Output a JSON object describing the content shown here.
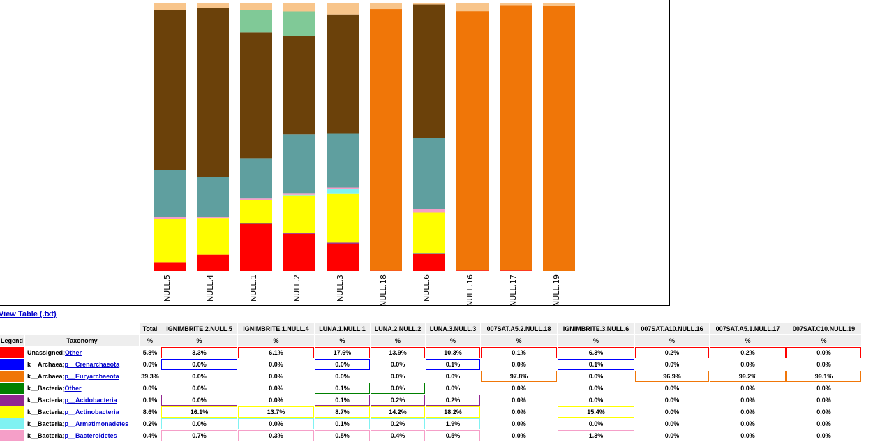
{
  "chart_data": {
    "type": "stacked-bar",
    "categories": [
      "NULL.5",
      "NULL.4",
      "NULL.1",
      "NULL.2",
      "NULL.3",
      "NULL.18",
      "NULL.6",
      "NULL.16",
      "NULL.17",
      "NULL.19"
    ],
    "ylim": [
      0,
      100
    ],
    "series": [
      {
        "name": "Unassigned;Other",
        "color": "#ff0000",
        "values": [
          3.3,
          6.1,
          17.6,
          13.9,
          10.3,
          0.1,
          6.3,
          0.2,
          0.2,
          0.0
        ]
      },
      {
        "name": "k__Archaea;p__Crenarchaeota",
        "color": "#0000ff",
        "values": [
          0.0,
          0.0,
          0.0,
          0.0,
          0.1,
          0.0,
          0.1,
          0.0,
          0.0,
          0.0
        ]
      },
      {
        "name": "k__Archaea;p__Euryarchaeota",
        "color": "#f07608",
        "values": [
          0.0,
          0.0,
          0.0,
          0.0,
          0.0,
          97.8,
          0.0,
          96.9,
          99.2,
          99.1
        ]
      },
      {
        "name": "k__Bacteria;Other",
        "color": "#008000",
        "values": [
          0.0,
          0.0,
          0.1,
          0.0,
          0.0,
          0.0,
          0.0,
          0.0,
          0.0,
          0.0
        ]
      },
      {
        "name": "k__Bacteria;p__Acidobacteria",
        "color": "#912790",
        "values": [
          0.0,
          0.0,
          0.1,
          0.2,
          0.2,
          0.0,
          0.0,
          0.0,
          0.0,
          0.0
        ]
      },
      {
        "name": "k__Bacteria;p__Actinobacteria",
        "color": "#ffff00",
        "values": [
          16.1,
          13.7,
          8.7,
          14.2,
          18.2,
          0.0,
          15.4,
          0.0,
          0.0,
          0.0
        ]
      },
      {
        "name": "k__Bacteria;p__Armatimonadetes",
        "color": "#7ff2f2",
        "values": [
          0.0,
          0.0,
          0.1,
          0.2,
          1.9,
          0.0,
          0.0,
          0.0,
          0.0,
          0.0
        ]
      },
      {
        "name": "k__Bacteria;p__Bacteroidetes",
        "color": "#f59fc8",
        "values": [
          0.7,
          0.3,
          0.5,
          0.4,
          0.5,
          0.0,
          1.3,
          0.0,
          0.0,
          0.0
        ]
      },
      {
        "color": "#5f9f9f",
        "values": [
          17.5,
          14.9,
          15.1,
          22.2,
          20.1,
          0.0,
          26.6,
          0.0,
          0.0,
          0.0
        ]
      },
      {
        "color": "#6b410a",
        "values": [
          59.8,
          63.4,
          47.0,
          36.8,
          44.6,
          0.0,
          49.9,
          0.0,
          0.0,
          0.0
        ]
      },
      {
        "color": "#80c997",
        "values": [
          0.0,
          0.0,
          8.4,
          9.1,
          0.0,
          0.0,
          0.0,
          0.0,
          0.0,
          0.0
        ]
      },
      {
        "color": "#f8c58b",
        "values": [
          2.6,
          1.6,
          2.4,
          3.0,
          4.1,
          2.1,
          0.4,
          2.9,
          0.6,
          0.9
        ]
      }
    ]
  },
  "view_link": "View Table (.txt)",
  "table": {
    "header": [
      "Total",
      "IGNIMBRITE.2.NULL.5",
      "IGNIMBRITE.1.NULL.4",
      "LUNA.1.NULL.1",
      "LUNA.2.NULL.2",
      "LUNA.3.NULL.3",
      "007SAT.A5.2.NULL.18",
      "IGNIMBRITE.3.NULL.6",
      "007SAT.A10.NULL.16",
      "007SAT.A5.1.NULL.17",
      "007SAT.C10.NULL.19"
    ],
    "subheader": [
      "Legend",
      "Taxonomy",
      "%",
      "%",
      "%",
      "%",
      "%",
      "%",
      "%",
      "%",
      "%",
      "%",
      "%"
    ],
    "rows": [
      {
        "color": "#ff0000",
        "prefix": "Unassigned;",
        "link": "Other",
        "cells": [
          "5.8%",
          "3.3%",
          "6.1%",
          "17.6%",
          "13.9%",
          "10.3%",
          "0.1%",
          "6.3%",
          "0.2%",
          "0.2%",
          "0.0%"
        ],
        "highlight": [
          true,
          true,
          true,
          true,
          true,
          true,
          true,
          true,
          true,
          true
        ]
      },
      {
        "color": "#0000ff",
        "prefix": "k__Archaea;",
        "link": "p__Crenarchaeota",
        "cells": [
          "0.0%",
          "0.0%",
          "0.0%",
          "0.0%",
          "0.0%",
          "0.1%",
          "0.0%",
          "0.1%",
          "0.0%",
          "0.0%",
          "0.0%"
        ],
        "highlight": [
          true,
          false,
          true,
          false,
          true,
          false,
          true,
          false,
          false,
          false
        ]
      },
      {
        "color": "#f07608",
        "prefix": "k__Archaea;",
        "link": "p__Euryarchaeota",
        "cells": [
          "39.3%",
          "0.0%",
          "0.0%",
          "0.0%",
          "0.0%",
          "0.0%",
          "97.8%",
          "0.0%",
          "96.9%",
          "99.2%",
          "99.1%"
        ],
        "highlight": [
          false,
          false,
          false,
          false,
          false,
          true,
          false,
          true,
          true,
          true
        ]
      },
      {
        "color": "#008000",
        "prefix": "k__Bacteria;",
        "link": "Other",
        "cells": [
          "0.0%",
          "0.0%",
          "0.0%",
          "0.1%",
          "0.0%",
          "0.0%",
          "0.0%",
          "0.0%",
          "0.0%",
          "0.0%",
          "0.0%"
        ],
        "highlight": [
          false,
          false,
          true,
          true,
          false,
          false,
          false,
          false,
          false,
          false
        ]
      },
      {
        "color": "#912790",
        "prefix": "k__Bacteria;",
        "link": "p__Acidobacteria",
        "cells": [
          "0.1%",
          "0.0%",
          "0.0%",
          "0.1%",
          "0.2%",
          "0.2%",
          "0.0%",
          "0.0%",
          "0.0%",
          "0.0%",
          "0.0%"
        ],
        "highlight": [
          true,
          false,
          true,
          true,
          true,
          false,
          false,
          false,
          false,
          false
        ]
      },
      {
        "color": "#ffff00",
        "prefix": "k__Bacteria;",
        "link": "p__Actinobacteria",
        "cells": [
          "8.6%",
          "16.1%",
          "13.7%",
          "8.7%",
          "14.2%",
          "18.2%",
          "0.0%",
          "15.4%",
          "0.0%",
          "0.0%",
          "0.0%"
        ],
        "highlight": [
          true,
          true,
          true,
          true,
          true,
          false,
          true,
          false,
          false,
          false
        ]
      },
      {
        "color": "#7ff2f2",
        "prefix": "k__Bacteria;",
        "link": "p__Armatimonadetes",
        "cells": [
          "0.2%",
          "0.0%",
          "0.0%",
          "0.1%",
          "0.2%",
          "1.9%",
          "0.0%",
          "0.0%",
          "0.0%",
          "0.0%",
          "0.0%"
        ],
        "highlight": [
          true,
          true,
          true,
          true,
          true,
          false,
          false,
          false,
          false,
          false
        ]
      },
      {
        "color": "#f59fc8",
        "prefix": "k__Bacteria;",
        "link": "p__Bacteroidetes",
        "cells": [
          "0.4%",
          "0.7%",
          "0.3%",
          "0.5%",
          "0.4%",
          "0.5%",
          "0.0%",
          "1.3%",
          "0.0%",
          "0.0%",
          "0.0%"
        ],
        "highlight": [
          true,
          true,
          true,
          true,
          true,
          false,
          true,
          false,
          false,
          false
        ]
      }
    ]
  }
}
